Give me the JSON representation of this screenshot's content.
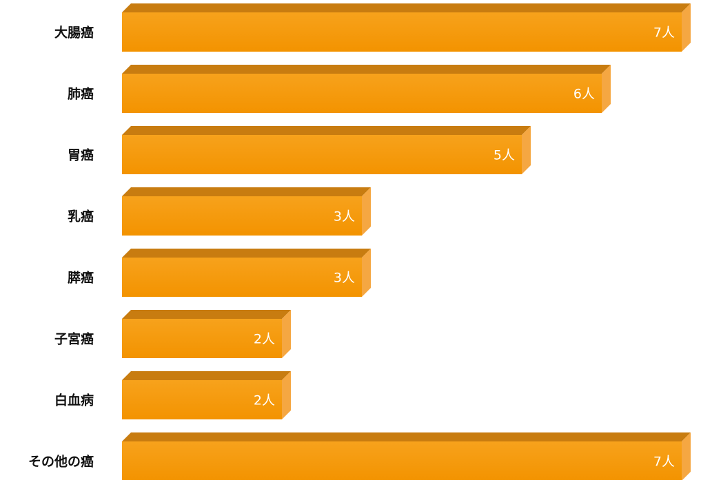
{
  "chart_data": {
    "type": "bar",
    "orientation": "horizontal",
    "categories": [
      "大腸癌",
      "肺癌",
      "胃癌",
      "乳癌",
      "膵癌",
      "子宮癌",
      "白血病",
      "その他の癌"
    ],
    "values": [
      7,
      6,
      5,
      3,
      3,
      2,
      2,
      7
    ],
    "value_labels": [
      "7人",
      "6人",
      "5人",
      "3人",
      "3人",
      "2人",
      "2人",
      "7人"
    ],
    "unit": "人",
    "xlim": [
      0,
      7
    ],
    "grid": false,
    "legend": "none",
    "colors": {
      "bar_front": "#F39300",
      "bar_top": "#C87C10",
      "bar_side": "#F5A742",
      "bar_front_light": "#F7A21C",
      "value_text": "#FFFFFF",
      "category_text": "#111111"
    }
  }
}
